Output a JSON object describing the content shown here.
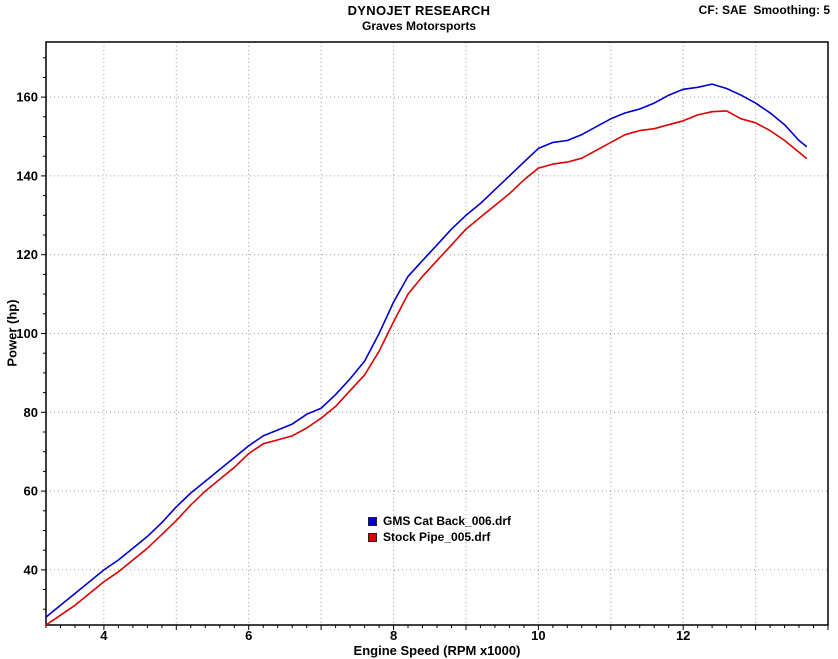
{
  "chart_data": {
    "type": "line",
    "title": "DYNOJET RESEARCH",
    "subtitle": "Graves Motorsports",
    "cf_label": "CF: SAE  Smoothing: 5",
    "xlabel": "Engine Speed (RPM x1000)",
    "ylabel": "Power (hp)",
    "xlim": [
      3.2,
      14.0
    ],
    "ylim": [
      26,
      174
    ],
    "grid": {
      "style": "dotted",
      "color": "#9a9a9a",
      "x_values": [
        4,
        5,
        6,
        7,
        8,
        9,
        10,
        11,
        12,
        13
      ],
      "y_values": [
        40,
        60,
        80,
        100,
        120,
        140,
        160
      ]
    },
    "x_ticks": {
      "labeled_values": [
        4,
        6,
        8,
        10,
        12
      ],
      "labels": [
        "4",
        "6",
        "8",
        "10",
        "12"
      ],
      "minor_step": 0.2
    },
    "y_ticks": {
      "labeled_values": [
        40,
        60,
        80,
        100,
        120,
        140,
        160
      ],
      "labels": [
        "40",
        "60",
        "80",
        "100",
        "120",
        "140",
        "160"
      ],
      "minor_step": 5
    },
    "legend_position": "bottom-center-inside",
    "x": [
      3.2,
      3.4,
      3.6,
      3.8,
      4.0,
      4.2,
      4.4,
      4.6,
      4.8,
      5.0,
      5.2,
      5.4,
      5.6,
      5.8,
      6.0,
      6.2,
      6.4,
      6.6,
      6.8,
      7.0,
      7.2,
      7.4,
      7.6,
      7.8,
      8.0,
      8.2,
      8.4,
      8.6,
      8.8,
      9.0,
      9.2,
      9.4,
      9.6,
      9.8,
      10.0,
      10.2,
      10.4,
      10.6,
      10.8,
      11.0,
      11.2,
      11.4,
      11.6,
      11.8,
      12.0,
      12.2,
      12.4,
      12.6,
      12.8,
      13.0,
      13.2,
      13.4,
      13.6,
      13.7
    ],
    "series": [
      {
        "name": "GMS Cat Back_006.drf",
        "color": "#0000cc",
        "values": [
          28,
          31,
          34,
          37,
          40,
          42.5,
          45.5,
          48.5,
          52,
          56,
          59.5,
          62.5,
          65.5,
          68.5,
          71.5,
          74,
          75.5,
          77,
          79.5,
          81,
          84.5,
          88.5,
          93,
          100,
          108,
          114.5,
          118.5,
          122.5,
          126.5,
          130,
          133,
          136.5,
          140,
          143.5,
          147,
          148.5,
          149,
          150.5,
          152.5,
          154.5,
          156,
          157,
          158.5,
          160.5,
          162,
          162.5,
          163.3,
          162.2,
          160.5,
          158.5,
          156,
          153,
          149,
          147.5
        ]
      },
      {
        "name": "Stock Pipe_005.drf",
        "color": "#dd0000",
        "values": [
          26,
          28.5,
          31,
          34,
          37,
          39.5,
          42.5,
          45.5,
          49,
          52.5,
          56.5,
          60,
          63,
          66,
          69.5,
          72,
          73,
          74,
          76,
          78.5,
          81.5,
          85.5,
          89.5,
          95.5,
          103,
          110,
          114.5,
          118.5,
          122.5,
          126.5,
          129.5,
          132.5,
          135.5,
          139,
          142,
          143,
          143.5,
          144.5,
          146.5,
          148.5,
          150.5,
          151.5,
          152,
          153,
          154,
          155.5,
          156.3,
          156.5,
          154.5,
          153.5,
          151.5,
          149,
          146,
          144.5
        ]
      }
    ]
  },
  "colors": {
    "background": "#ffffff",
    "plot_border": "#000000",
    "text": "#000000"
  }
}
